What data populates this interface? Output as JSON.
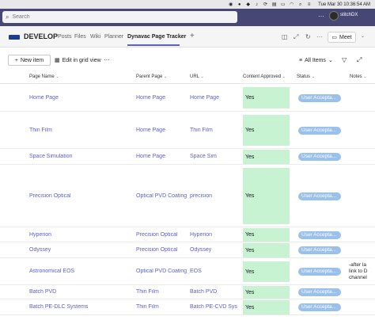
{
  "menubar": {
    "datetime": "Tue Mar 30  10:36:54 AM"
  },
  "teams": {
    "search_placeholder": "Search",
    "more": "···",
    "org": "stitchDX"
  },
  "channel": {
    "team_name": "DEVELOP",
    "tabs": [
      "Posts",
      "Files",
      "Wiki",
      "Planner"
    ],
    "active_tab": "Dynavac Page Tracker",
    "meet_label": "Meet"
  },
  "commands": {
    "new_item": "New item",
    "edit_grid": "Edit in grid view",
    "more": "···",
    "view": "All Items"
  },
  "table": {
    "headers": [
      "Page Name",
      "Parent Page",
      "URL",
      "Content Approved",
      "Status",
      "Notes"
    ],
    "rows": [
      {
        "page": "Home Page",
        "parent": "Home Page",
        "url": "Home Page",
        "approved": "Yes",
        "status": "User Accepta...",
        "notes": ""
      },
      {
        "page": "Thin Film",
        "parent": "Home Page",
        "url": "Thin Film",
        "approved": "Yes",
        "status": "User Accepta...",
        "notes": ""
      },
      {
        "page": "Space Simulation",
        "parent": "Home Page",
        "url": "Space Sim",
        "approved": "Yes",
        "status": "User Accepta...",
        "notes": ""
      },
      {
        "page": "Precision Optical",
        "parent": "Optical PVD Coating S",
        "url": "precision",
        "approved": "Yes",
        "status": "User Accepta...",
        "notes": ""
      },
      {
        "page": "Hyperion",
        "parent": "Precision Optical",
        "url": "Hyperion",
        "approved": "Yes",
        "status": "User Accepta...",
        "notes": ""
      },
      {
        "page": "Odyssey",
        "parent": "Precision Optical",
        "url": "Odyssey",
        "approved": "Yes",
        "status": "User Accepta...",
        "notes": ""
      },
      {
        "page": "Astronomical EOS",
        "parent": "Optical PVD Coating S",
        "url": "EOS",
        "approved": "Yes",
        "status": "User Accepta...",
        "notes": "-after la\nlink to D\nchannel"
      },
      {
        "page": "Batch PVD",
        "parent": "Thin Film",
        "url": "Batch PVD",
        "approved": "Yes",
        "status": "User Accepta...",
        "notes": ""
      },
      {
        "page": "Batch PE-DLC Systems",
        "parent": "Thin Film",
        "url": "Batch PE-CVD Sys...",
        "approved": "Yes",
        "status": "User Accepta...",
        "notes": ""
      }
    ]
  }
}
